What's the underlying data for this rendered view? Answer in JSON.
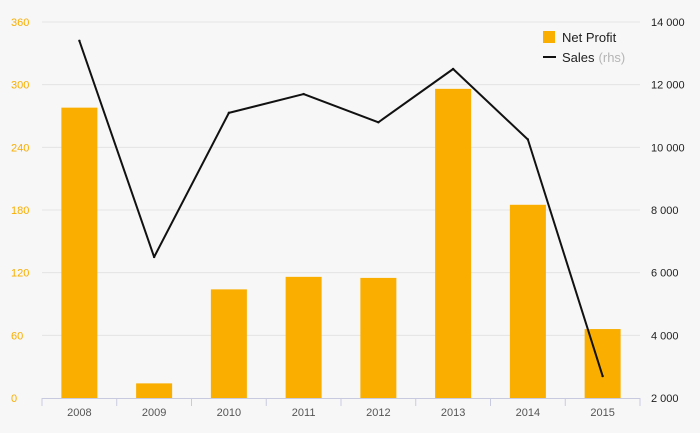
{
  "colors": {
    "bar": "#f9ae00",
    "line": "#111111",
    "left_axis_text": "#f9ae00",
    "right_axis_text": "#222222",
    "x_axis_text": "#555555",
    "grid": "#e4e4e4",
    "baseline": "#c8cbe0",
    "background": "#f7f7f7"
  },
  "chart_data": {
    "type": "bar",
    "categories": [
      "2008",
      "2009",
      "2010",
      "2011",
      "2012",
      "2013",
      "2014",
      "2015"
    ],
    "series": [
      {
        "name": "Net Profit",
        "type": "bar",
        "axis": "left",
        "values": [
          278,
          14,
          104,
          116,
          115,
          296,
          185,
          66
        ]
      },
      {
        "name": "Sales",
        "note": "(rhs)",
        "type": "line",
        "axis": "right",
        "values": [
          13400,
          6500,
          11100,
          11700,
          10800,
          12500,
          10250,
          2700
        ]
      }
    ],
    "y_left": {
      "ticks": [
        0,
        60,
        120,
        180,
        240,
        300,
        360
      ],
      "tick_labels": [
        "0",
        "60",
        "120",
        "180",
        "240",
        "300",
        "360"
      ],
      "ylim": [
        0,
        360
      ]
    },
    "y_right": {
      "ticks": [
        2000,
        4000,
        6000,
        8000,
        10000,
        12000,
        14000
      ],
      "tick_labels": [
        "2 000",
        "4 000",
        "6 000",
        "8 000",
        "10 000",
        "12 000",
        "14 000"
      ],
      "ylim": [
        2000,
        14000
      ]
    },
    "grid": true,
    "legend": "top-right"
  }
}
